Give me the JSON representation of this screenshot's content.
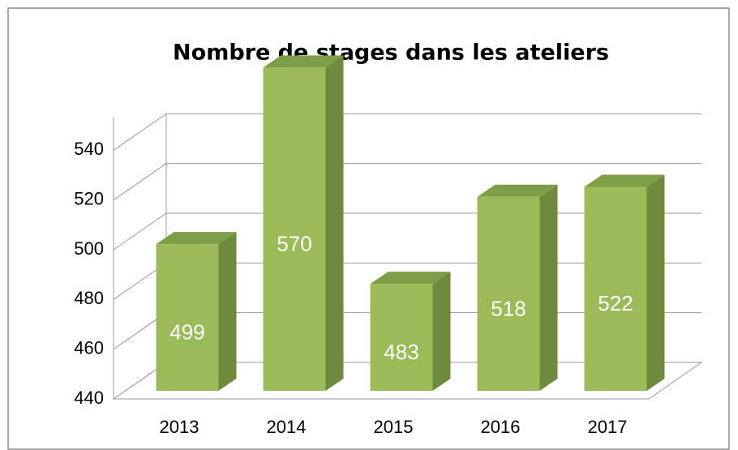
{
  "chart_data": {
    "type": "bar",
    "title": "Nombre de stages dans les ateliers",
    "categories": [
      "2013",
      "2014",
      "2015",
      "2016",
      "2017"
    ],
    "values": [
      499,
      570,
      483,
      518,
      522
    ],
    "color": "#9bbb59",
    "ylim": [
      440,
      560
    ],
    "yticks": [
      440,
      460,
      480,
      500,
      520,
      540
    ],
    "grid": true
  }
}
